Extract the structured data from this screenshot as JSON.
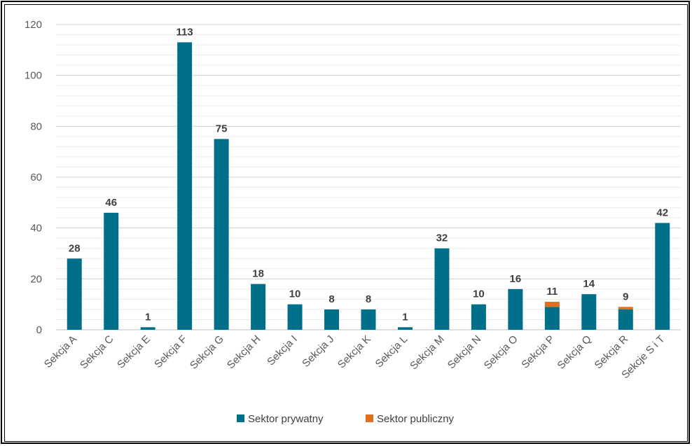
{
  "chart_data": {
    "type": "bar",
    "stacked": true,
    "categories": [
      "Sekcja A",
      "Sekcja C",
      "Sekcja E",
      "Sekcja F",
      "Sekcja G",
      "Sekcja H",
      "Sekcja I",
      "Sekcja J",
      "Sekcja K",
      "Sekcja L",
      "Sekcja M",
      "Sekcja N",
      "Sekcja O",
      "Sekcja P",
      "Sekcja Q",
      "Sekcja R",
      "Sekcje S i T"
    ],
    "series": [
      {
        "name": "Sektor prywatny",
        "color": "#00708A",
        "values": [
          28,
          46,
          1,
          113,
          75,
          18,
          10,
          8,
          8,
          1,
          32,
          10,
          16,
          9,
          14,
          8,
          42
        ]
      },
      {
        "name": "Sektor publiczny",
        "color": "#E07020",
        "values": [
          0,
          0,
          0,
          0,
          0,
          0,
          0,
          0,
          0,
          0,
          0,
          0,
          0,
          2,
          0,
          1,
          0
        ]
      }
    ],
    "totals": [
      28,
      46,
      1,
      113,
      75,
      18,
      10,
      8,
      8,
      1,
      32,
      10,
      16,
      11,
      14,
      9,
      42
    ],
    "ylim": [
      0,
      120
    ],
    "yticks": [
      0,
      20,
      40,
      60,
      80,
      100,
      120
    ],
    "grid": true,
    "legend_position": "bottom",
    "title": "",
    "xlabel": "",
    "ylabel": ""
  }
}
